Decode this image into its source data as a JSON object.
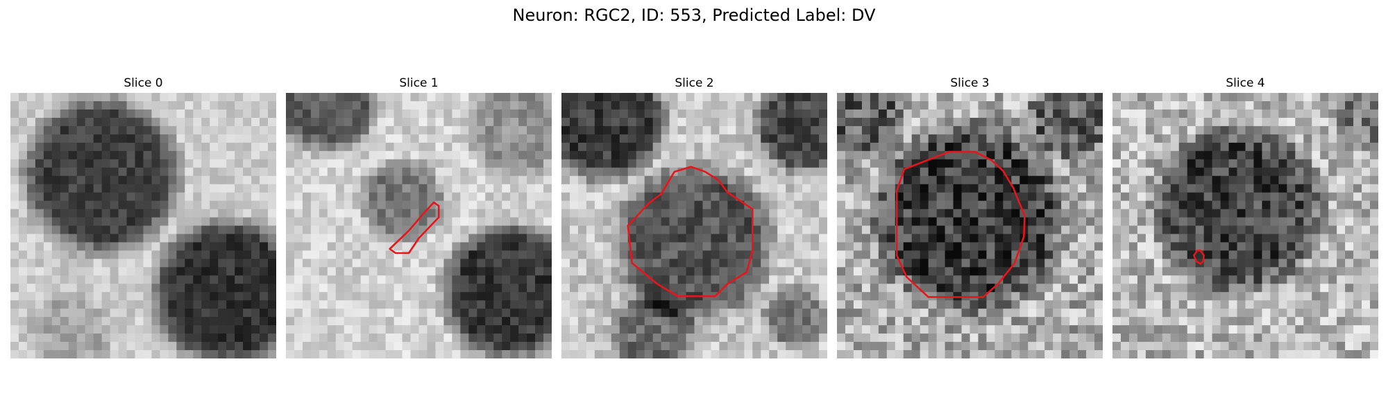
{
  "figure": {
    "title": "Neuron: RGC2, ID: 553, Predicted Label: DV"
  },
  "panels": [
    {
      "title": "Slice 0",
      "content": "grayscale microscopy crop, no outline"
    },
    {
      "title": "Slice 1",
      "content": "grayscale microscopy crop with small red outline"
    },
    {
      "title": "Slice 2",
      "content": "grayscale microscopy crop with red cell outline"
    },
    {
      "title": "Slice 3",
      "content": "grayscale microscopy crop with red cell outline"
    },
    {
      "title": "Slice 4",
      "content": "grayscale microscopy crop with tiny red outline"
    }
  ],
  "colors": {
    "outline": "#e8151a",
    "background": "#ffffff"
  }
}
